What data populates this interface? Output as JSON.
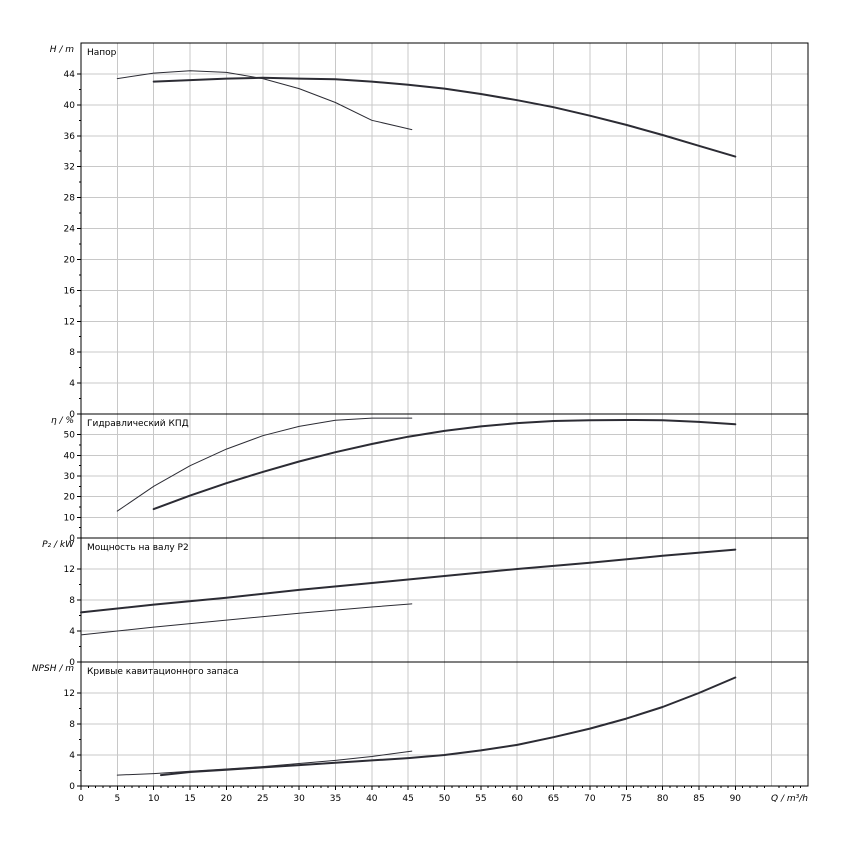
{
  "chart_data": {
    "type": "line",
    "x_axis": {
      "label": "Q / m³/h",
      "range": [
        0,
        100
      ],
      "ticks": [
        0,
        5,
        10,
        15,
        20,
        25,
        30,
        35,
        40,
        45,
        50,
        55,
        60,
        65,
        70,
        75,
        80,
        85,
        90
      ]
    },
    "panels": [
      {
        "id": "head",
        "title": "Напор",
        "ylabel": "H / m",
        "ylim": [
          0,
          48
        ],
        "yticks": [
          0,
          4,
          8,
          12,
          16,
          20,
          24,
          28,
          32,
          36,
          40,
          44
        ],
        "series": [
          {
            "style": "thick",
            "x": [
              10,
              15,
              20,
              25,
              30,
              35,
              40,
              45,
              50,
              55,
              60,
              65,
              70,
              75,
              80,
              85,
              90
            ],
            "y": [
              43.0,
              43.2,
              43.4,
              43.5,
              43.4,
              43.3,
              43.0,
              42.6,
              42.1,
              41.4,
              40.6,
              39.7,
              38.6,
              37.4,
              36.1,
              34.7,
              33.3
            ]
          },
          {
            "style": "thin",
            "x": [
              5,
              10,
              15,
              20,
              25,
              30,
              35,
              40,
              45.5
            ],
            "y": [
              43.4,
              44.1,
              44.4,
              44.2,
              43.4,
              42.1,
              40.3,
              38.0,
              36.8
            ]
          }
        ]
      },
      {
        "id": "efficiency",
        "title": "Гидравлический КПД",
        "ylabel": "η / %",
        "ylim": [
          0,
          60
        ],
        "yticks": [
          0,
          10,
          20,
          30,
          40,
          50
        ],
        "series": [
          {
            "style": "thick",
            "x": [
              10,
              15,
              20,
              25,
              30,
              35,
              40,
              45,
              50,
              55,
              60,
              65,
              70,
              75,
              80,
              85,
              90
            ],
            "y": [
              14,
              20.5,
              26.5,
              32,
              37,
              41.5,
              45.5,
              49,
              51.8,
              54,
              55.6,
              56.6,
              57,
              57.1,
              57,
              56.2,
              55
            ]
          },
          {
            "style": "thin",
            "x": [
              5,
              10,
              15,
              20,
              25,
              30,
              35,
              40,
              45.5
            ],
            "y": [
              13,
              25,
              35,
              43,
              49.5,
              54,
              57,
              58,
              58
            ]
          }
        ]
      },
      {
        "id": "power",
        "title": "Мощность на валу P2",
        "ylabel": "P₂ / kW",
        "ylim": [
          0,
          16
        ],
        "yticks": [
          0,
          4,
          8,
          12
        ],
        "series": [
          {
            "style": "thick",
            "x": [
              0,
              10,
              20,
              30,
              40,
              50,
              60,
              70,
              80,
              90
            ],
            "y": [
              6.4,
              7.4,
              8.3,
              9.3,
              10.2,
              11.1,
              12.0,
              12.8,
              13.7,
              14.5
            ]
          },
          {
            "style": "thin",
            "x": [
              0,
              10,
              20,
              30,
              40,
              45.5
            ],
            "y": [
              3.5,
              4.5,
              5.4,
              6.3,
              7.1,
              7.5
            ]
          }
        ]
      },
      {
        "id": "npsh",
        "title": "Кривые кавитационного запаса",
        "ylabel": "NPSH / m",
        "ylim": [
          0,
          16
        ],
        "yticks": [
          0,
          4,
          8,
          12
        ],
        "series": [
          {
            "style": "thick",
            "x": [
              11,
              15,
              20,
              25,
              30,
              35,
              40,
              45,
              50,
              55,
              60,
              65,
              70,
              75,
              80,
              85,
              90
            ],
            "y": [
              1.4,
              1.8,
              2.1,
              2.4,
              2.7,
              3.0,
              3.3,
              3.6,
              4.0,
              4.6,
              5.3,
              6.3,
              7.4,
              8.7,
              10.2,
              12.0,
              14.0
            ]
          },
          {
            "style": "thin",
            "x": [
              5,
              10,
              15,
              20,
              25,
              30,
              35,
              40,
              45.5
            ],
            "y": [
              1.4,
              1.6,
              1.9,
              2.2,
              2.5,
              2.9,
              3.3,
              3.8,
              4.5
            ]
          }
        ]
      }
    ]
  }
}
